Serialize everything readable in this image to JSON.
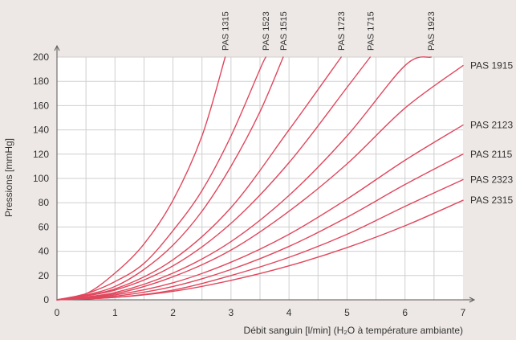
{
  "chart_data": {
    "type": "line",
    "title": "",
    "xlabel": "Débit sanguin [l/min] (H₂O à température ambiante)",
    "ylabel": "Pressions [mmHg]",
    "xlim": [
      0,
      7
    ],
    "ylim": [
      0,
      200
    ],
    "xticks": [
      "0",
      "1",
      "2",
      "3",
      "4",
      "5",
      "6",
      "7"
    ],
    "yticks": [
      "0",
      "20",
      "40",
      "60",
      "80",
      "100",
      "120",
      "140",
      "160",
      "180",
      "200"
    ],
    "grid": true,
    "line_color": "#e0475d",
    "series": [
      {
        "name": "PAS 1315",
        "label_position": "top",
        "points": [
          [
            0,
            0
          ],
          [
            0.5,
            5
          ],
          [
            1,
            22
          ],
          [
            1.5,
            46
          ],
          [
            2,
            82
          ],
          [
            2.5,
            135
          ],
          [
            2.9,
            200
          ]
        ]
      },
      {
        "name": "PAS 1523",
        "label_position": "top",
        "points": [
          [
            0,
            0
          ],
          [
            0.5,
            5
          ],
          [
            1,
            15
          ],
          [
            1.5,
            30
          ],
          [
            2,
            57
          ],
          [
            2.5,
            90
          ],
          [
            3,
            135
          ],
          [
            3.5,
            190
          ],
          [
            3.6,
            200
          ]
        ]
      },
      {
        "name": "PAS 1515",
        "label_position": "top",
        "points": [
          [
            0,
            0
          ],
          [
            0.5,
            4
          ],
          [
            1,
            11
          ],
          [
            1.5,
            25
          ],
          [
            2,
            45
          ],
          [
            2.5,
            73
          ],
          [
            3,
            110
          ],
          [
            3.5,
            155
          ],
          [
            3.9,
            200
          ]
        ]
      },
      {
        "name": "PAS 1723",
        "label_position": "top",
        "points": [
          [
            0,
            0
          ],
          [
            1,
            9
          ],
          [
            2,
            33
          ],
          [
            3,
            76
          ],
          [
            4,
            140
          ],
          [
            4.9,
            200
          ]
        ]
      },
      {
        "name": "PAS 1715",
        "label_position": "top",
        "points": [
          [
            0,
            0
          ],
          [
            1,
            8
          ],
          [
            2,
            28
          ],
          [
            3,
            63
          ],
          [
            4,
            113
          ],
          [
            5,
            175
          ],
          [
            5.4,
            200
          ]
        ]
      },
      {
        "name": "PAS 1923",
        "label_position": "top",
        "points": [
          [
            0,
            0
          ],
          [
            1,
            6
          ],
          [
            2,
            22
          ],
          [
            3,
            48
          ],
          [
            4,
            86
          ],
          [
            5,
            135
          ],
          [
            6,
            193
          ],
          [
            6.45,
            200
          ]
        ]
      },
      {
        "name": "PAS 1915",
        "label_position": "right",
        "points": [
          [
            0,
            0
          ],
          [
            1,
            5
          ],
          [
            2,
            19
          ],
          [
            3,
            41
          ],
          [
            4,
            73
          ],
          [
            5,
            112
          ],
          [
            6,
            158
          ],
          [
            7,
            193
          ]
        ]
      },
      {
        "name": "PAS 2123",
        "label_position": "right",
        "points": [
          [
            0,
            0
          ],
          [
            1,
            4
          ],
          [
            2,
            14
          ],
          [
            3,
            31
          ],
          [
            4,
            54
          ],
          [
            5,
            83
          ],
          [
            6,
            115
          ],
          [
            7,
            144
          ]
        ]
      },
      {
        "name": "PAS 2115",
        "label_position": "right",
        "points": [
          [
            0,
            0
          ],
          [
            1,
            3
          ],
          [
            2,
            11
          ],
          [
            3,
            25
          ],
          [
            4,
            44
          ],
          [
            5,
            68
          ],
          [
            6,
            95
          ],
          [
            7,
            120
          ]
        ]
      },
      {
        "name": "PAS 2323",
        "label_position": "right",
        "points": [
          [
            0,
            0
          ],
          [
            1,
            2
          ],
          [
            2,
            8
          ],
          [
            3,
            20
          ],
          [
            4,
            35
          ],
          [
            5,
            54
          ],
          [
            6,
            77
          ],
          [
            7,
            99
          ]
        ]
      },
      {
        "name": "PAS 2315",
        "label_position": "right",
        "points": [
          [
            0,
            0
          ],
          [
            1,
            2
          ],
          [
            2,
            7
          ],
          [
            3,
            16
          ],
          [
            4,
            28
          ],
          [
            5,
            43
          ],
          [
            6,
            61
          ],
          [
            7,
            82
          ]
        ]
      }
    ]
  }
}
